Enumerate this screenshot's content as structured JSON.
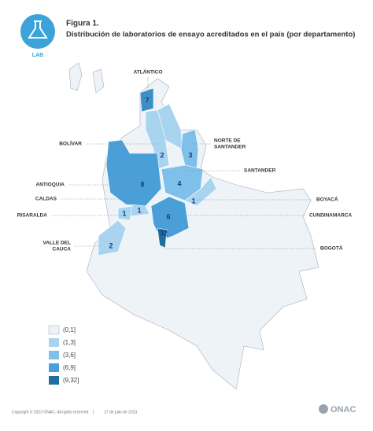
{
  "header": {
    "icon_label": "LAB",
    "figure": "Figura 1.",
    "title": "Distribución de laboratorios de ensayo acreditados en el país (por departamento)"
  },
  "map": {
    "departments": [
      {
        "label": [
          "ATLÁNTICO"
        ],
        "count": 7
      },
      {
        "label": [
          "BOLÍVAR"
        ],
        "count": 2
      },
      {
        "label": [
          "NORTE DE",
          "SANTANDER"
        ],
        "count": 3
      },
      {
        "label": [
          "SANTANDER"
        ],
        "count": 4
      },
      {
        "label": [
          "ANTIOQUIA"
        ],
        "count": 8
      },
      {
        "label": [
          "BOYACÁ"
        ],
        "count": 1
      },
      {
        "label": [
          "CALDAS"
        ],
        "count": 1
      },
      {
        "label": [
          "RISARALDA"
        ],
        "count": 1
      },
      {
        "label": [
          "CUNDINAMARCA"
        ],
        "count": 6
      },
      {
        "label": [
          "BOGOTÁ"
        ],
        "count": 32
      },
      {
        "label": [
          "VALLE DEL",
          "CAUCA"
        ],
        "count": 2
      }
    ]
  },
  "legend": [
    "(0,1]",
    "(1,3]",
    "(3,6]",
    "(6,9]",
    "(9,32]"
  ],
  "footer": {
    "copyright": "Copyright © 2023 ONAC. All rights reserved.",
    "separator": "|",
    "date": "17 de julio de 2023",
    "brand": "ONAC"
  }
}
